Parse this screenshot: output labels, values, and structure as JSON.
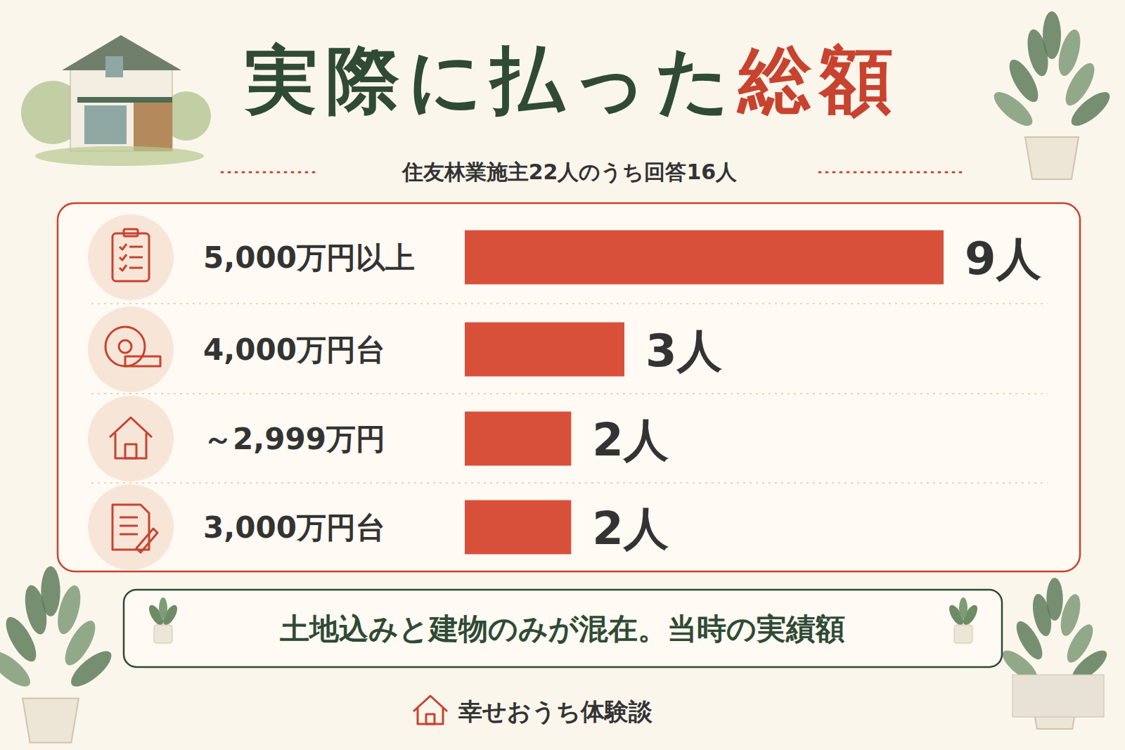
{
  "chart_data": {
    "type": "bar",
    "orientation": "horizontal",
    "title": "実際に払った総額",
    "subtitle": "住友林業施主22人のうち回答16人",
    "categories": [
      "5,000万円以上",
      "4,000万円台",
      "～2,999万円",
      "3,000万円台"
    ],
    "values": [
      9,
      3,
      2,
      2
    ],
    "value_labels": [
      "9人",
      "3人",
      "2人",
      "2人"
    ],
    "data_labels": true,
    "color": "#d9503a",
    "xlim": [
      0,
      9
    ],
    "tick_labels": false,
    "grid": false,
    "annotation": "土地込みと建物のみが混在。当時の実績額",
    "source": "幸せおうち体験談"
  }
}
